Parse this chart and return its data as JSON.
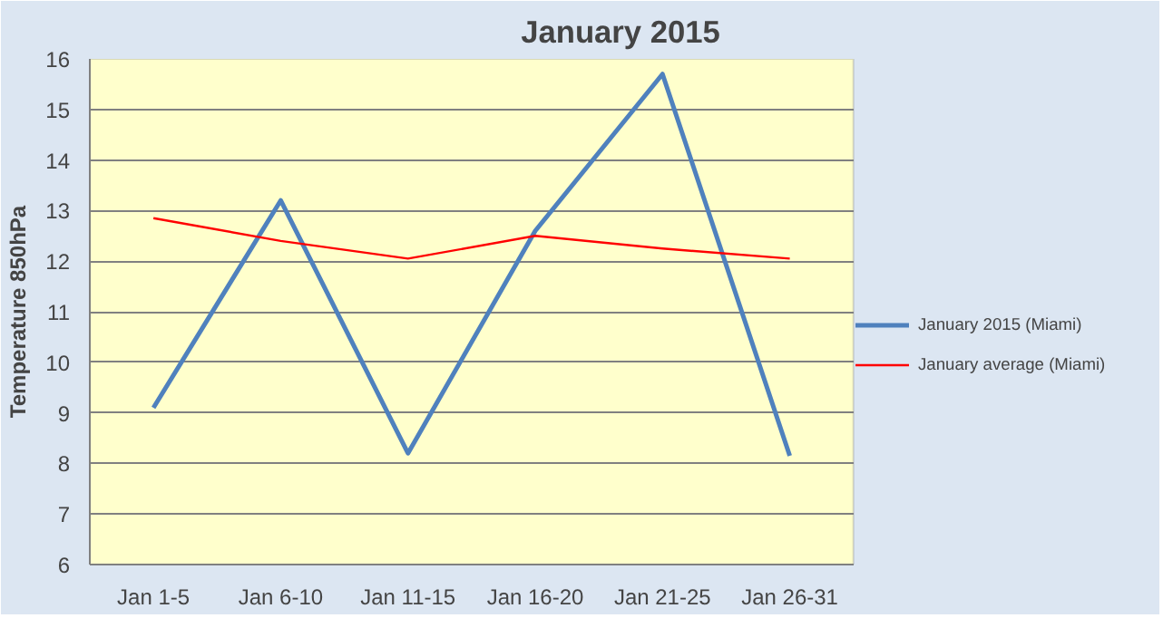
{
  "chart_data": {
    "type": "line",
    "title": "January 2015",
    "ylabel": "Temperature 850hPa",
    "categories": [
      "Jan 1-5",
      "Jan 6-10",
      "Jan 11-15",
      "Jan 16-20",
      "Jan 21-25",
      "Jan 26-31"
    ],
    "series": [
      {
        "name": "January 2015 (Miami)",
        "color": "#4f81bd",
        "values": [
          9.1,
          13.2,
          8.2,
          12.6,
          15.7,
          8.15
        ]
      },
      {
        "name": "January average (Miami)",
        "color": "#ff0000",
        "values": [
          12.85,
          12.4,
          12.05,
          12.5,
          12.25,
          12.05
        ]
      }
    ],
    "ylim": [
      6,
      16
    ],
    "yticks": [
      6,
      7,
      8,
      9,
      10,
      11,
      12,
      13,
      14,
      15,
      16
    ],
    "grid": "y",
    "legend": "right"
  }
}
